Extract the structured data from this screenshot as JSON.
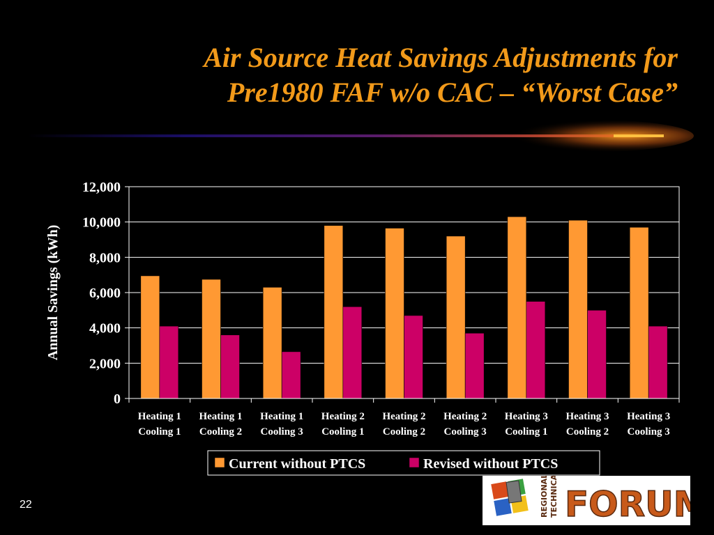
{
  "slide": {
    "title_line1": "Air Source Heat Savings Adjustments for",
    "title_line2": "Pre1980 FAF w/o CAC – “Worst Case”",
    "slide_number": "22",
    "logo_text": "FORUM",
    "logo_subtext": "REGIONAL TECHNICAL"
  },
  "colors": {
    "background": "#000000",
    "title": "#f29a1a",
    "series1": "#ff9933",
    "series2": "#cc0066",
    "text": "#ffffff"
  },
  "chart_data": {
    "type": "bar",
    "categories": [
      [
        "Heating 1",
        "Cooling 1"
      ],
      [
        "Heating 1",
        "Cooling 2"
      ],
      [
        "Heating 1",
        "Cooling 3"
      ],
      [
        "Heating 2",
        "Cooling 1"
      ],
      [
        "Heating 2",
        "Cooling 2"
      ],
      [
        "Heating 2",
        "Cooling 3"
      ],
      [
        "Heating 3",
        "Cooling 1"
      ],
      [
        "Heating 3",
        "Cooling 2"
      ],
      [
        "Heating 3",
        "Cooling 3"
      ]
    ],
    "series": [
      {
        "name": "Current without PTCS",
        "values": [
          6950,
          6750,
          6300,
          9800,
          9650,
          9200,
          10300,
          10100,
          9700
        ]
      },
      {
        "name": "Revised without PTCS",
        "values": [
          4100,
          3600,
          2650,
          5200,
          4700,
          3700,
          5500,
          5000,
          4100
        ]
      }
    ],
    "ylabel": "Annual Savings (kWh)",
    "ylim": [
      0,
      12000
    ],
    "yticks": [
      0,
      2000,
      4000,
      6000,
      8000,
      10000,
      12000
    ],
    "ytick_labels": [
      "0",
      "2,000",
      "4,000",
      "6,000",
      "8,000",
      "10,000",
      "12,000"
    ],
    "grid": true,
    "legend_position": "bottom"
  }
}
